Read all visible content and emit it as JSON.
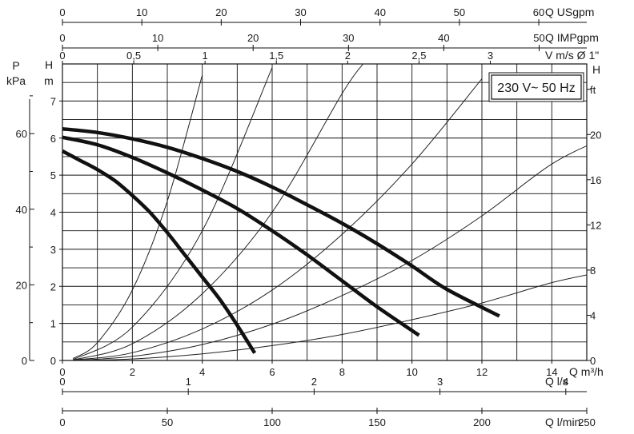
{
  "chart_data": {
    "type": "line",
    "title": "",
    "badge": "230 V~ 50 Hz",
    "xlim": [
      0,
      15
    ],
    "ylim": [
      0,
      8
    ],
    "grid": true,
    "colors": {
      "curve": "#111111",
      "grid": "#111111",
      "system": "#222222"
    },
    "x_axis": {
      "label": "Q m³/h",
      "ticks": [
        {
          "v": 0,
          "t": "0"
        },
        {
          "v": 2,
          "t": "2"
        },
        {
          "v": 4,
          "t": "4"
        },
        {
          "v": 6,
          "t": "6"
        },
        {
          "v": 8,
          "t": "8"
        },
        {
          "v": 10,
          "t": "10"
        },
        {
          "v": 12,
          "t": "12"
        },
        {
          "v": 14,
          "t": "14"
        }
      ]
    },
    "y_axis": {
      "label_lines": [
        "H",
        "m"
      ],
      "ticks": [
        {
          "v": 0,
          "t": "0"
        },
        {
          "v": 1,
          "t": "1"
        },
        {
          "v": 2,
          "t": "2"
        },
        {
          "v": 3,
          "t": "3"
        },
        {
          "v": 4,
          "t": "4"
        },
        {
          "v": 5,
          "t": "5"
        },
        {
          "v": 6,
          "t": "6"
        },
        {
          "v": 7,
          "t": "7"
        }
      ]
    },
    "secondary_x_axes": [
      {
        "label": "Q USgpm",
        "ticks": [
          {
            "v": 0,
            "t": "0"
          },
          {
            "v": 2.271,
            "t": "10"
          },
          {
            "v": 4.542,
            "t": "20"
          },
          {
            "v": 6.813,
            "t": "30"
          },
          {
            "v": 9.085,
            "t": "40"
          },
          {
            "v": 11.356,
            "t": "50"
          },
          {
            "v": 13.627,
            "t": "60"
          }
        ]
      },
      {
        "label": "Q IMPgpm",
        "ticks": [
          {
            "v": 0,
            "t": "0"
          },
          {
            "v": 2.728,
            "t": "10"
          },
          {
            "v": 5.455,
            "t": "20"
          },
          {
            "v": 8.183,
            "t": "30"
          },
          {
            "v": 10.91,
            "t": "40"
          },
          {
            "v": 13.638,
            "t": "50"
          }
        ]
      },
      {
        "label": "V m/s Ø 1\"",
        "ticks": [
          {
            "v": 0,
            "t": "0"
          },
          {
            "v": 2.04,
            "t": "0,5"
          },
          {
            "v": 4.08,
            "t": "1"
          },
          {
            "v": 6.12,
            "t": "1,5"
          },
          {
            "v": 8.16,
            "t": "2"
          },
          {
            "v": 10.2,
            "t": "2,5"
          },
          {
            "v": 12.24,
            "t": "3"
          }
        ]
      },
      {
        "label": "Q l/s",
        "ticks": [
          {
            "v": 0,
            "t": "0"
          },
          {
            "v": 3.6,
            "t": "1"
          },
          {
            "v": 7.2,
            "t": "2"
          },
          {
            "v": 10.8,
            "t": "3"
          },
          {
            "v": 14.4,
            "t": "4"
          }
        ]
      },
      {
        "label": "Q l/min",
        "ticks": [
          {
            "v": 0,
            "t": "0"
          },
          {
            "v": 3,
            "t": "50"
          },
          {
            "v": 6,
            "t": "100"
          },
          {
            "v": 9,
            "t": "150"
          },
          {
            "v": 12,
            "t": "200"
          },
          {
            "v": 15,
            "t": "250"
          }
        ]
      }
    ],
    "secondary_y_axes": [
      {
        "label_lines": [
          "P",
          "kPa"
        ],
        "ticks": [
          {
            "v": 0,
            "t": "0"
          },
          {
            "v": 2.04,
            "t": "20"
          },
          {
            "v": 4.08,
            "t": "40"
          },
          {
            "v": 6.12,
            "t": "60"
          }
        ]
      },
      {
        "label_lines": [
          "H",
          "ft"
        ],
        "ticks": [
          {
            "v": 0,
            "t": "0"
          },
          {
            "v": 1.219,
            "t": "4"
          },
          {
            "v": 2.438,
            "t": "8"
          },
          {
            "v": 3.658,
            "t": "12"
          },
          {
            "v": 4.877,
            "t": "16"
          },
          {
            "v": 6.096,
            "t": "20"
          },
          {
            "v": 7.315,
            "t": "ft"
          }
        ]
      }
    ],
    "series": [
      {
        "values": [
          [
            0,
            6.25
          ],
          [
            1,
            6.15
          ],
          [
            2,
            5.98
          ],
          [
            3,
            5.75
          ],
          [
            4,
            5.45
          ],
          [
            5,
            5.1
          ],
          [
            6,
            4.68
          ],
          [
            7,
            4.2
          ],
          [
            8,
            3.7
          ],
          [
            9,
            3.15
          ],
          [
            10,
            2.55
          ],
          [
            11,
            1.92
          ],
          [
            12.5,
            1.2
          ]
        ]
      },
      {
        "values": [
          [
            0,
            6.02
          ],
          [
            1,
            5.82
          ],
          [
            2,
            5.48
          ],
          [
            3,
            5.06
          ],
          [
            4,
            4.6
          ],
          [
            5,
            4.1
          ],
          [
            6,
            3.5
          ],
          [
            7,
            2.85
          ],
          [
            8,
            2.15
          ],
          [
            9,
            1.45
          ],
          [
            10.2,
            0.68
          ]
        ]
      },
      {
        "values": [
          [
            0,
            5.65
          ],
          [
            0.5,
            5.4
          ],
          [
            1,
            5.15
          ],
          [
            1.5,
            4.85
          ],
          [
            2,
            4.45
          ],
          [
            2.5,
            4.0
          ],
          [
            3,
            3.45
          ],
          [
            3.5,
            2.85
          ],
          [
            4,
            2.25
          ],
          [
            4.5,
            1.65
          ],
          [
            5,
            0.95
          ],
          [
            5.5,
            0.2
          ]
        ]
      }
    ],
    "system_curves": [
      {
        "values": [
          [
            0.3,
            0.05
          ],
          [
            1,
            0.48
          ],
          [
            2,
            1.9
          ],
          [
            3,
            4.3
          ],
          [
            4,
            7.7
          ]
        ]
      },
      {
        "values": [
          [
            0.3,
            0.02
          ],
          [
            2,
            0.9
          ],
          [
            4,
            3.5
          ],
          [
            6,
            7.9
          ]
        ]
      },
      {
        "values": [
          [
            0.3,
            0.01
          ],
          [
            2,
            0.45
          ],
          [
            4,
            1.8
          ],
          [
            6,
            4.0
          ],
          [
            8,
            7.2
          ],
          [
            8.6,
            8.0
          ]
        ]
      },
      {
        "values": [
          [
            0.3,
            0.01
          ],
          [
            2,
            0.21
          ],
          [
            4,
            0.85
          ],
          [
            6,
            1.9
          ],
          [
            8,
            3.4
          ],
          [
            10,
            5.3
          ],
          [
            12,
            7.6
          ]
        ]
      },
      {
        "values": [
          [
            0.3,
            0.0
          ],
          [
            2,
            0.11
          ],
          [
            4,
            0.43
          ],
          [
            6,
            0.98
          ],
          [
            8,
            1.75
          ],
          [
            10,
            2.7
          ],
          [
            12,
            3.9
          ],
          [
            14,
            5.3
          ],
          [
            15.5,
            6.0
          ]
        ]
      },
      {
        "values": [
          [
            0.3,
            0.0
          ],
          [
            2,
            0.04
          ],
          [
            4,
            0.18
          ],
          [
            6,
            0.4
          ],
          [
            8,
            0.7
          ],
          [
            10,
            1.1
          ],
          [
            12,
            1.55
          ],
          [
            14,
            2.1
          ],
          [
            15.5,
            2.4
          ]
        ]
      }
    ]
  }
}
